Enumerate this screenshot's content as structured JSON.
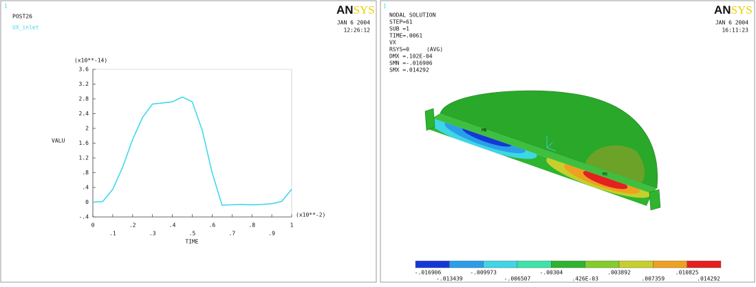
{
  "chart_data": {
    "type": "line",
    "corner_label": "1",
    "program": "POST26",
    "logo": [
      "AN",
      "SYS"
    ],
    "date": "JAN  6 2004",
    "time": "12:26:12",
    "y_label": "VALU",
    "y_multiplier": "(x10**-14)",
    "x_label": "TIME",
    "x_multiplier": "(x10**-2)",
    "x": [
      0,
      0.05,
      0.1,
      0.15,
      0.2,
      0.25,
      0.3,
      0.35,
      0.4,
      0.45,
      0.5,
      0.55,
      0.6,
      0.65,
      0.7,
      0.75,
      0.8,
      0.85,
      0.9,
      0.95,
      1
    ],
    "series": [
      {
        "name": "UX_inlet",
        "color": "#3fd8ec",
        "values": [
          0,
          0.02,
          0.35,
          0.95,
          1.7,
          2.3,
          2.66,
          2.69,
          2.72,
          2.85,
          2.72,
          1.95,
          0.8,
          -0.08,
          -0.07,
          -0.06,
          -0.07,
          -0.06,
          -0.04,
          0.02,
          0.35
        ]
      }
    ],
    "xlim": [
      0,
      1
    ],
    "ylim": [
      -0.4,
      3.6
    ],
    "xticks": [
      0,
      {
        "value": 0.1,
        "label": ".1"
      },
      {
        "value": 0.2,
        "label": ".2"
      },
      {
        "value": 0.3,
        "label": ".3"
      },
      {
        "value": 0.4,
        "label": ".4"
      },
      {
        "value": 0.5,
        "label": ".5"
      },
      {
        "value": 0.6,
        "label": ".6"
      },
      {
        "value": 0.7,
        "label": ".7"
      },
      {
        "value": 0.8,
        "label": ".8"
      },
      {
        "value": 0.9,
        "label": ".9"
      },
      1
    ],
    "yticks": [
      {
        "value": -0.4,
        "label": "-.4"
      },
      0,
      {
        "value": 0.4,
        "label": ".4"
      },
      {
        "value": 0.8,
        "label": ".8"
      },
      {
        "value": 1.2,
        "label": "1.2"
      },
      {
        "value": 1.6,
        "label": "1.6"
      },
      2,
      {
        "value": 2.4,
        "label": "2.4"
      },
      {
        "value": 2.8,
        "label": "2.8"
      },
      {
        "value": 3.2,
        "label": "3.2"
      },
      {
        "value": 3.6,
        "label": "3.6"
      }
    ],
    "grid": false
  },
  "right_panel": {
    "corner_label": "1",
    "logo": [
      "AN",
      "SYS"
    ],
    "info": [
      "NODAL SOLUTION",
      "STEP=61",
      "SUB =1",
      "TIME=.0061",
      "VX",
      "RSYS=0",
      "DMX =.102E-04",
      "SMN =-.016906",
      "SMX =.014292"
    ],
    "avg": "(AVG)",
    "date": "JAN  6 2004",
    "time": "16:11:23",
    "min_marker": "MN",
    "max_marker": "MX",
    "legend_colors": [
      "#1438d8",
      "#2a9ee8",
      "#3fd6e6",
      "#3ee3a8",
      "#2eb42e",
      "#84cc2a",
      "#c6cf2c",
      "#eea020",
      "#e42020"
    ],
    "legend_labels": [
      "-.016906",
      "-.013439",
      "-.009973",
      "-.006507",
      "-.00304",
      ".426E-03",
      ".003892",
      ".007359",
      ".010825",
      ".014292"
    ]
  }
}
